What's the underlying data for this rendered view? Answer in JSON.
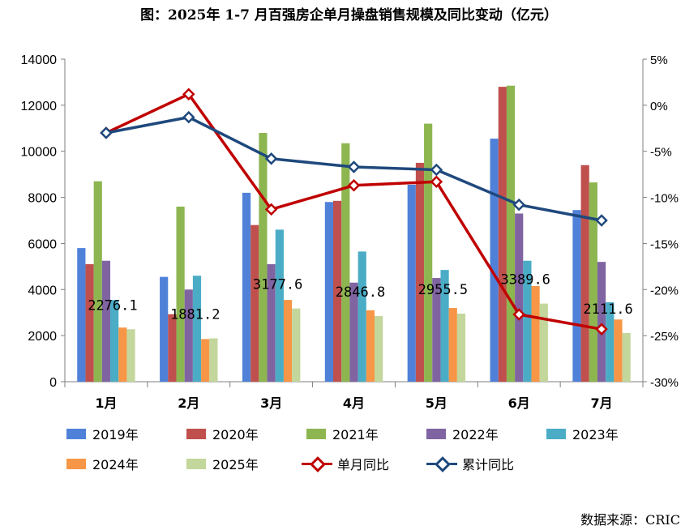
{
  "title": "图：2025年 1-7 月百强房企单月操盘销售规模及同比变动（亿元）",
  "source": "数据来源：CRIC",
  "chart_data": {
    "type": "bar",
    "title": "图：2025年 1-7 月百强房企单月操盘销售规模及同比变动（亿元）",
    "categories": [
      "1月",
      "2月",
      "3月",
      "4月",
      "5月",
      "6月",
      "7月"
    ],
    "left_axis": {
      "ylim": [
        0,
        14000
      ],
      "ticks": [
        "0",
        "2000",
        "4000",
        "6000",
        "8000",
        "10000",
        "12000",
        "14000"
      ]
    },
    "right_axis": {
      "ylim": [
        -30,
        5
      ],
      "ticks": [
        "5%",
        "0%",
        "-5%",
        "-10%",
        "-15%",
        "-20%",
        "-25%",
        "-30%"
      ]
    },
    "series": [
      {
        "name": "2019年",
        "color": "#4F81D9",
        "values": [
          5800,
          4550,
          8200,
          7800,
          8550,
          10550,
          7450
        ]
      },
      {
        "name": "2020年",
        "color": "#C0504D",
        "values": [
          5100,
          2930,
          6800,
          7850,
          9500,
          12800,
          9400
        ]
      },
      {
        "name": "2021年",
        "color": "#8DB651",
        "values": [
          8700,
          7600,
          10800,
          10350,
          11200,
          12850,
          8650
        ]
      },
      {
        "name": "2022年",
        "color": "#8064A2",
        "values": [
          5250,
          4000,
          5100,
          4300,
          4500,
          7300,
          5200
        ]
      },
      {
        "name": "2023年",
        "color": "#4BACC6",
        "values": [
          3550,
          4600,
          6600,
          5650,
          4850,
          5250,
          3450
        ]
      },
      {
        "name": "2024年",
        "color": "#F79646",
        "values": [
          2350,
          1850,
          3550,
          3100,
          3200,
          4150,
          2700
        ]
      },
      {
        "name": "2025年",
        "color": "#C3D69B",
        "values": [
          2276.1,
          1881.2,
          3177.6,
          2846.8,
          2955.5,
          3389.6,
          2111.6
        ],
        "labels": [
          "2276.1",
          "1881.2",
          "3177.6",
          "2846.8",
          "2955.5",
          "3389.6",
          "2111.6"
        ]
      }
    ],
    "lines": [
      {
        "name": "单月同比",
        "color": "#C00000",
        "axis": "right",
        "values": [
          -3.0,
          1.2,
          -11.3,
          -8.7,
          -8.3,
          -22.7,
          -24.3
        ]
      },
      {
        "name": "累计同比",
        "color": "#1F497D",
        "axis": "right",
        "values": [
          -3.0,
          -1.3,
          -5.8,
          -6.7,
          -7.0,
          -10.8,
          -12.5
        ]
      }
    ]
  }
}
